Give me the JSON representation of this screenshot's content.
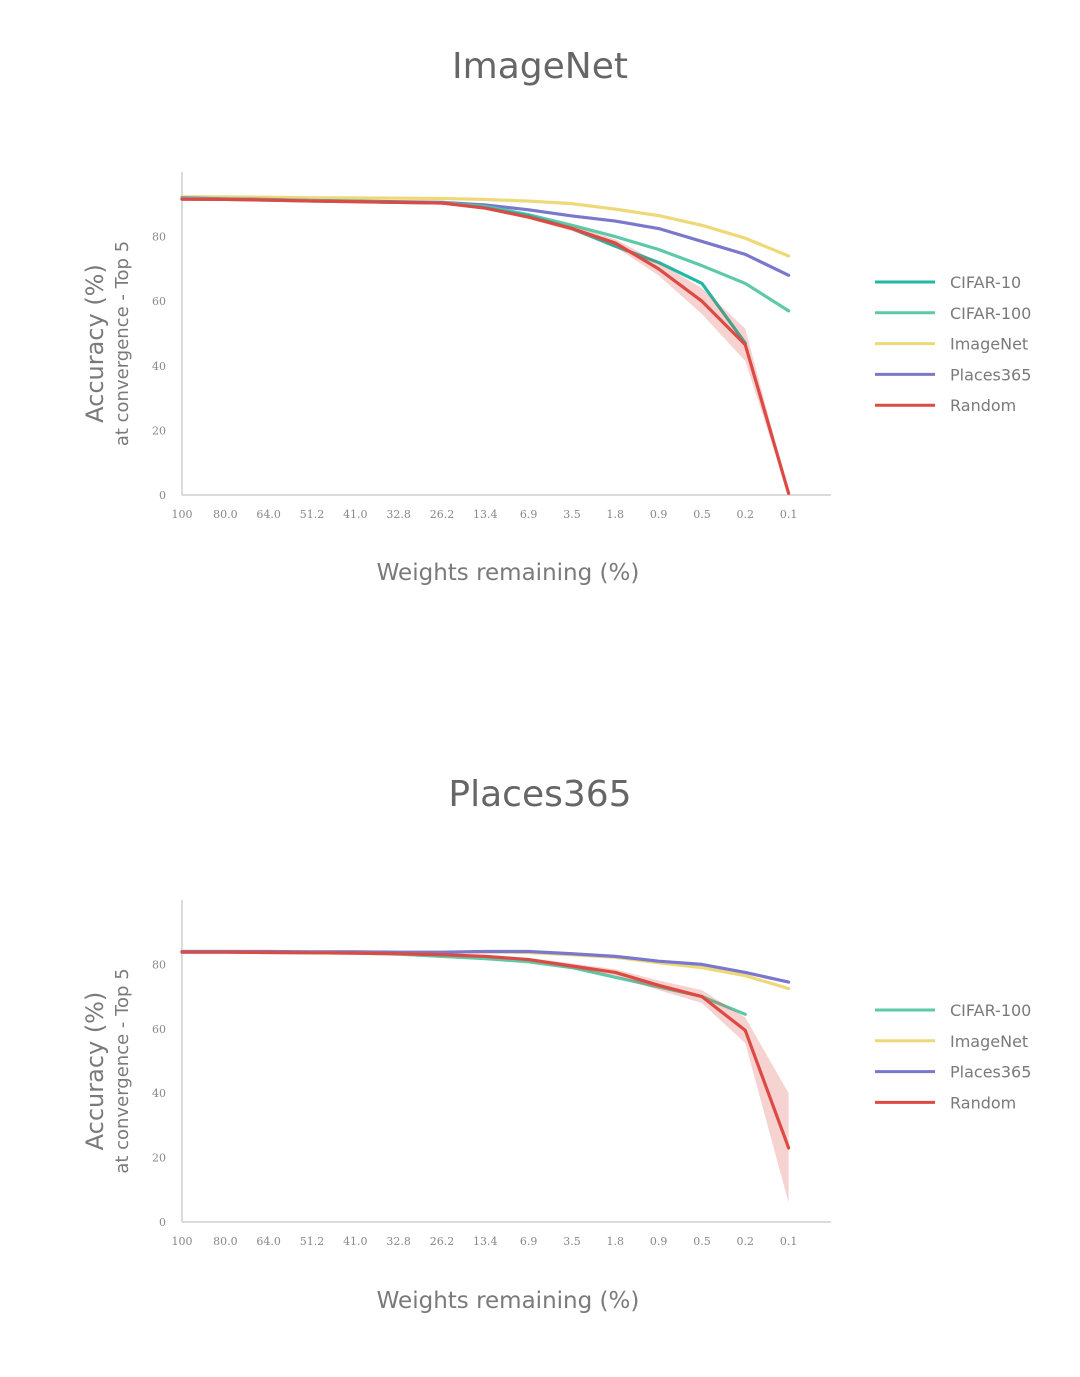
{
  "chart_data": [
    {
      "type": "line",
      "title": "ImageNet",
      "xlabel": "Weights remaining (%)",
      "ylabel": "Accuracy (%)",
      "ylabel_sub": "at convergence - Top 5",
      "x": [
        "100",
        "80.0",
        "64.0",
        "51.2",
        "41.0",
        "32.8",
        "26.2",
        "13.4",
        "6.9",
        "3.5",
        "1.8",
        "0.9",
        "0.5",
        "0.2",
        "0.1"
      ],
      "yticks": [
        0,
        20,
        40,
        60,
        80
      ],
      "ylim": [
        0,
        100
      ],
      "legend": "right",
      "series": [
        {
          "name": "CIFAR-10",
          "color": "#23b8a4",
          "values": [
            91.6,
            91.5,
            91.3,
            91.0,
            90.9,
            90.6,
            90.4,
            89.0,
            86.5,
            82.5,
            77.0,
            72.0,
            65.5,
            47.0,
            null
          ]
        },
        {
          "name": "CIFAR-100",
          "color": "#5ec9a8",
          "values": [
            91.8,
            91.6,
            91.4,
            91.1,
            90.9,
            90.6,
            90.5,
            89.3,
            86.8,
            83.5,
            80.0,
            76.0,
            71.0,
            65.5,
            57.0
          ]
        },
        {
          "name": "ImageNet",
          "color": "#eed878",
          "values": [
            92.3,
            92.3,
            92.2,
            92.0,
            92.0,
            91.9,
            91.8,
            91.5,
            91.0,
            90.2,
            88.5,
            86.5,
            83.5,
            79.5,
            74.0
          ]
        },
        {
          "name": "Places365",
          "color": "#7a78cc",
          "values": [
            92.0,
            91.7,
            91.5,
            91.2,
            91.0,
            90.8,
            90.6,
            89.8,
            88.3,
            86.4,
            84.8,
            82.5,
            78.5,
            74.5,
            68.0
          ]
        },
        {
          "name": "Random",
          "color": "#dd4a44",
          "values": [
            91.6,
            91.5,
            91.3,
            91.0,
            90.8,
            90.6,
            90.4,
            88.8,
            86.0,
            82.5,
            78.0,
            70.0,
            60.0,
            46.5,
            0.5
          ],
          "band": [
            0,
            0,
            0,
            0,
            0,
            0,
            0,
            0,
            0.5,
            0.8,
            1.2,
            2.0,
            4.0,
            5.0,
            0.5
          ]
        }
      ]
    },
    {
      "type": "line",
      "title": "Places365",
      "xlabel": "Weights remaining (%)",
      "ylabel": "Accuracy (%)",
      "ylabel_sub": "at convergence - Top 5",
      "x": [
        "100",
        "80.0",
        "64.0",
        "51.2",
        "41.0",
        "32.8",
        "26.2",
        "13.4",
        "6.9",
        "3.5",
        "1.8",
        "0.9",
        "0.5",
        "0.2",
        "0.1"
      ],
      "yticks": [
        0,
        20,
        40,
        60,
        80
      ],
      "ylim": [
        0,
        100
      ],
      "legend": "right",
      "series": [
        {
          "name": "CIFAR-100",
          "color": "#5ec9a8",
          "values": [
            83.8,
            83.8,
            83.7,
            83.6,
            83.5,
            83.2,
            82.5,
            81.8,
            80.8,
            79.0,
            76.0,
            73.0,
            70.0,
            64.5,
            null
          ]
        },
        {
          "name": "ImageNet",
          "color": "#eed878",
          "values": [
            84.0,
            84.0,
            84.0,
            83.9,
            83.9,
            83.8,
            83.8,
            83.9,
            83.7,
            83.0,
            82.2,
            80.5,
            79.0,
            76.5,
            72.5
          ]
        },
        {
          "name": "Places365",
          "color": "#7a78cc",
          "values": [
            84.0,
            84.0,
            84.0,
            83.9,
            83.9,
            83.8,
            83.8,
            84.0,
            84.0,
            83.3,
            82.5,
            81.0,
            80.0,
            77.5,
            74.5
          ]
        },
        {
          "name": "Random",
          "color": "#dd4a44",
          "values": [
            83.8,
            83.8,
            83.7,
            83.6,
            83.5,
            83.3,
            83.0,
            82.5,
            81.5,
            79.5,
            77.5,
            73.5,
            70.0,
            59.5,
            23.0
          ],
          "band": [
            0,
            0,
            0,
            0,
            0,
            0,
            0,
            0,
            0.5,
            0.8,
            1.0,
            1.5,
            2.0,
            4.0,
            17.0
          ]
        }
      ]
    }
  ]
}
